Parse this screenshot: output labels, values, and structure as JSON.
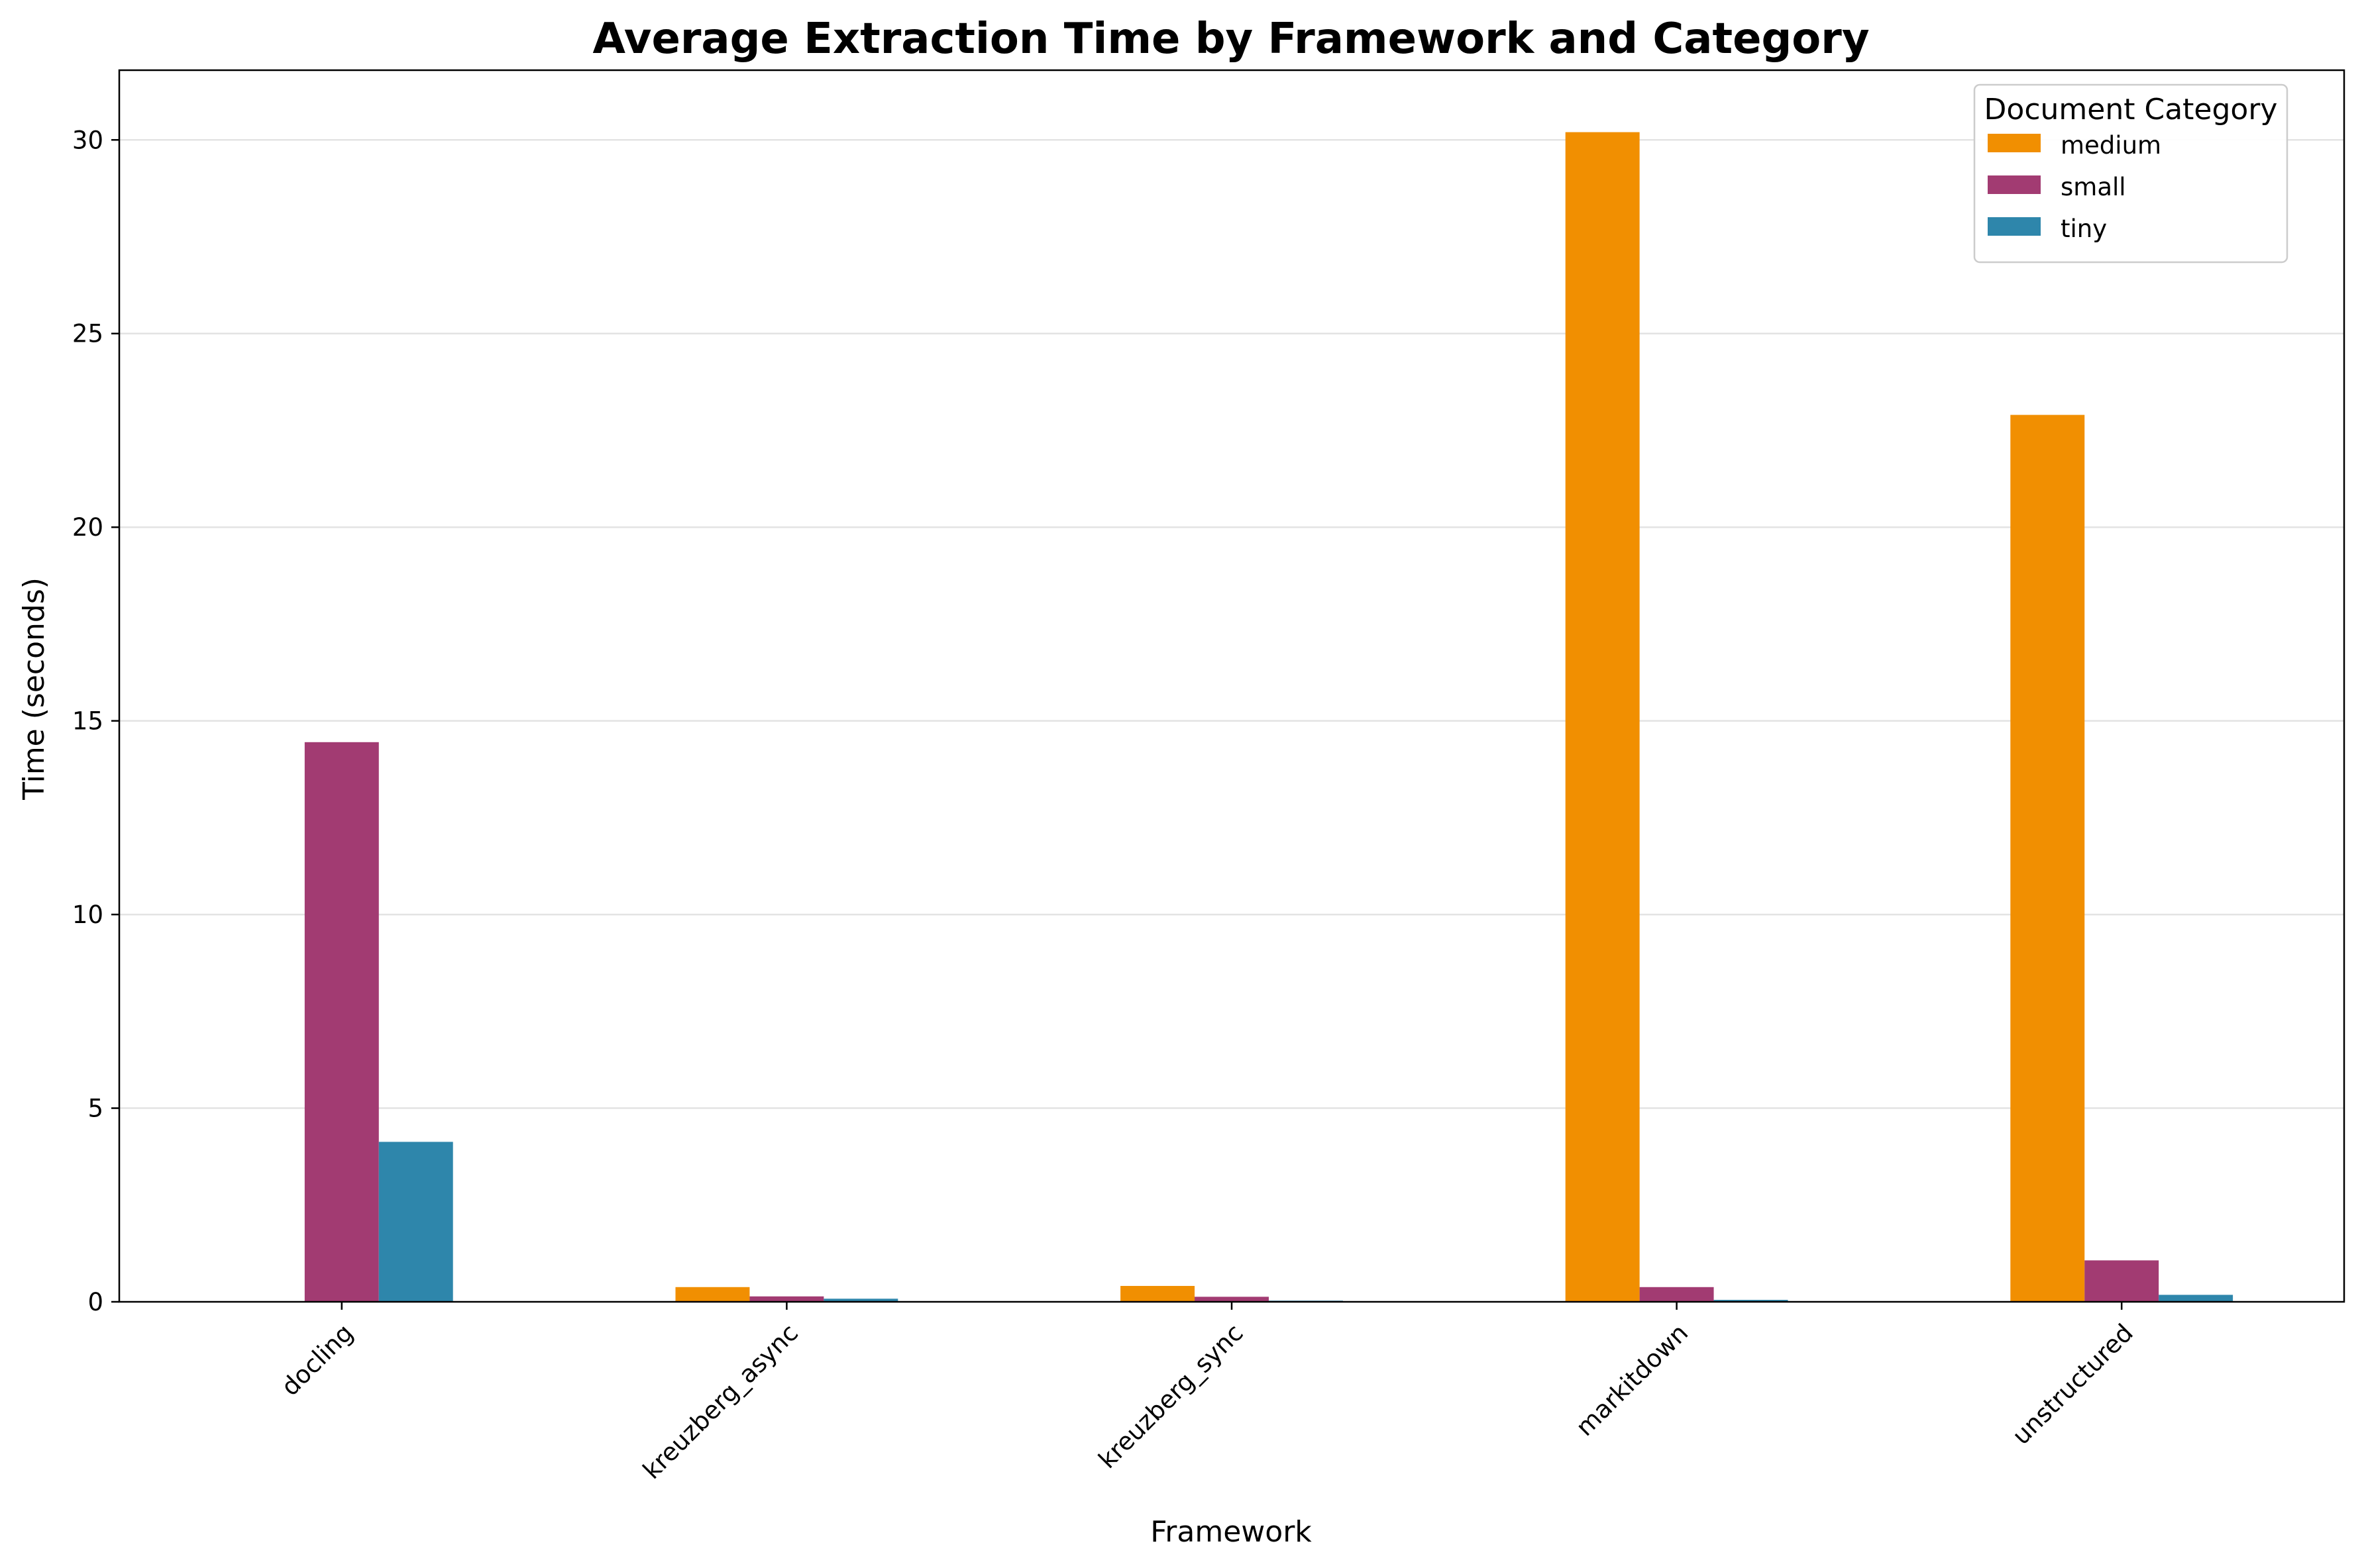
{
  "chart_data": {
    "type": "bar",
    "title": "Average Extraction Time by Framework and Category",
    "xlabel": "Framework",
    "ylabel": "Time (seconds)",
    "categories": [
      "docling",
      "kreuzberg_async",
      "kreuzberg_sync",
      "markitdown",
      "unstructured"
    ],
    "series": [
      {
        "name": "medium",
        "color": "#F18F01",
        "values": [
          0,
          0.38,
          0.41,
          30.2,
          22.9
        ]
      },
      {
        "name": "small",
        "color": "#A23B72",
        "values": [
          14.45,
          0.14,
          0.13,
          0.38,
          1.07
        ]
      },
      {
        "name": "tiny",
        "color": "#2E86AB",
        "values": [
          4.13,
          0.08,
          0.03,
          0.05,
          0.18
        ]
      }
    ],
    "yticks": [
      0,
      5,
      10,
      15,
      20,
      25,
      30
    ],
    "ylim": [
      0,
      31.8
    ],
    "grid": "horizontal",
    "legend": {
      "title": "Document Category",
      "position": "top-right"
    }
  }
}
